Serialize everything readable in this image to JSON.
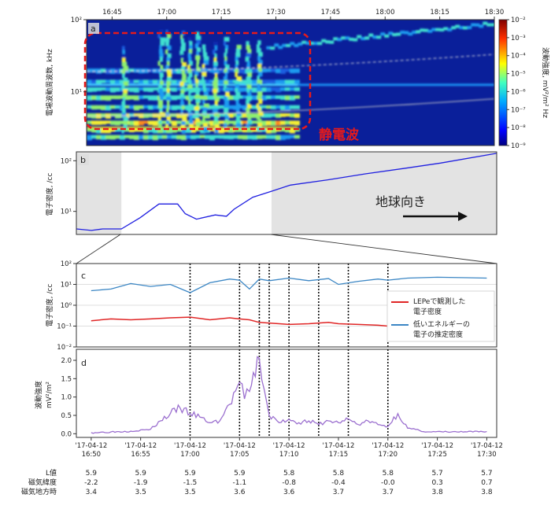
{
  "colors": {
    "blue_line": "#1f1fe0",
    "steel_blue": "#3b86c4",
    "red_line": "#e02525",
    "purple_line": "#9b6fcf",
    "shade": "#e3e3e3",
    "annotation_red": "#e41a1c"
  },
  "panel_a": {
    "label": "a",
    "ylabel": "電場波動周波数, kHz",
    "cbar_label": "波動強度, mV²/m² Hz",
    "top_ticks": [
      "16:45",
      "17:00",
      "17:15",
      "17:30",
      "17:45",
      "18:00",
      "18:15",
      "18:30"
    ],
    "y_ticks": [
      {
        "text": "10²",
        "value": 100
      },
      {
        "text": "10¹",
        "value": 10
      }
    ],
    "cbar_ticks": [
      "10⁻²",
      "10⁻³",
      "10⁻⁴",
      "10⁻⁵",
      "10⁻⁶",
      "10⁻⁷",
      "10⁻⁸",
      "10⁻⁹"
    ],
    "annotation": "静電波"
  },
  "panel_b": {
    "label": "b",
    "ylabel": "電子密度, /cc",
    "y_ticks": [
      {
        "text": "10²",
        "value": 100
      },
      {
        "text": "10¹",
        "value": 10
      }
    ],
    "annotation": "地球向き"
  },
  "panel_c": {
    "label": "c",
    "ylabel": "電子密度, /cc",
    "y_ticks": [
      {
        "text": "10²",
        "value": 100
      },
      {
        "text": "10¹",
        "value": 10
      },
      {
        "text": "10⁰",
        "value": 1
      },
      {
        "text": "10⁻¹",
        "value": 0.1
      },
      {
        "text": "10⁻²",
        "value": 0.01
      }
    ],
    "legend": [
      {
        "line1": "LEPeで観測した",
        "line2": "電子密度",
        "color": "#e02525"
      },
      {
        "line1": "低いエネルギーの",
        "line2": "電子の推定密度",
        "color": "#3b86c4"
      }
    ]
  },
  "panel_d": {
    "label": "d",
    "ylabel1": "波動強度",
    "ylabel2": "mV²/m²",
    "y_ticks": [
      {
        "text": "2.0",
        "value": 2.0
      },
      {
        "text": "1.5",
        "value": 1.5
      },
      {
        "text": "1.0",
        "value": 1.0
      },
      {
        "text": "0.5",
        "value": 0.5
      },
      {
        "text": "0.0",
        "value": 0.0
      }
    ]
  },
  "x_ticks": [
    {
      "date": "'17-04-12",
      "time": "16:50"
    },
    {
      "date": "'17-04-12",
      "time": "16:55"
    },
    {
      "date": "'17-04-12",
      "time": "17:00"
    },
    {
      "date": "'17-04-12",
      "time": "17:05"
    },
    {
      "date": "'17-04-12",
      "time": "17:10"
    },
    {
      "date": "'17-04-12",
      "time": "17:15"
    },
    {
      "date": "'17-04-12",
      "time": "17:20"
    },
    {
      "date": "'17-04-12",
      "time": "17:25"
    },
    {
      "date": "'17-04-12",
      "time": "17:30"
    }
  ],
  "footer": {
    "rows": [
      {
        "label": "L値",
        "values": [
          "5.9",
          "5.9",
          "5.9",
          "5.9",
          "5.8",
          "5.8",
          "5.8",
          "5.7",
          "5.7"
        ]
      },
      {
        "label": "磁気緯度",
        "values": [
          "-2.2",
          "-1.9",
          "-1.5",
          "-1.1",
          "-0.8",
          "-0.4",
          "-0.0",
          "0.3",
          "0.7"
        ]
      },
      {
        "label": "磁気地方時",
        "values": [
          "3.4",
          "3.5",
          "3.5",
          "3.6",
          "3.6",
          "3.7",
          "3.7",
          "3.8",
          "3.8"
        ]
      }
    ]
  },
  "chart_data": [
    {
      "panel": "a",
      "type": "heatmap",
      "xlim": [
        "16:38",
        "18:30"
      ],
      "ylim_khz": [
        1.8,
        100
      ],
      "yscale": "log",
      "colorscale_range": [
        "10⁻⁹",
        "10⁻²"
      ]
    },
    {
      "panel": "b",
      "type": "line",
      "yscale": "log",
      "ylim": [
        3.5,
        150
      ],
      "shaded_spans": [
        [
          "16:38",
          "16:50"
        ],
        [
          "17:30",
          "18:30"
        ]
      ],
      "x": [
        "16:38",
        "16:42",
        "16:45",
        "16:50",
        "16:55",
        "17:00",
        "17:05",
        "17:07",
        "17:10",
        "17:15",
        "17:18",
        "17:20",
        "17:25",
        "17:30",
        "17:35",
        "17:45",
        "17:55",
        "18:05",
        "18:15",
        "18:30"
      ],
      "values": [
        4.5,
        4.2,
        4.5,
        4.5,
        7.5,
        14,
        14,
        9,
        7,
        8.5,
        8,
        11,
        19,
        25,
        33,
        42,
        55,
        70,
        90,
        140
      ]
    },
    {
      "panel": "c",
      "type": "line",
      "yscale": "log",
      "ylim": [
        0.01,
        100
      ],
      "x": [
        "16:50",
        "16:52",
        "16:54",
        "16:56",
        "16:58",
        "17:00",
        "17:02",
        "17:04",
        "17:05",
        "17:06",
        "17:07",
        "17:08",
        "17:10",
        "17:12",
        "17:14",
        "17:15",
        "17:17",
        "17:19",
        "17:20",
        "17:22",
        "17:25",
        "17:28",
        "17:30"
      ],
      "series": [
        {
          "name": "LEPeで観測した電子密度",
          "values": [
            0.18,
            0.22,
            0.2,
            0.22,
            0.25,
            0.27,
            0.2,
            0.25,
            0.22,
            0.2,
            0.15,
            0.14,
            0.12,
            0.13,
            0.15,
            0.13,
            0.12,
            0.11,
            0.1,
            0.1,
            0.11,
            0.12,
            0.13
          ]
        },
        {
          "name": "低いエネルギーの電子の推定密度",
          "values": [
            5,
            6,
            11,
            8,
            10,
            4,
            12,
            18,
            16,
            6,
            18,
            15,
            20,
            15,
            19,
            10,
            14,
            18,
            16,
            20,
            22,
            21,
            20
          ]
        }
      ]
    },
    {
      "panel": "d",
      "type": "line",
      "ylim": [
        -0.1,
        2.3
      ],
      "x": [
        "16:50",
        "16:52",
        "16:54",
        "16:56",
        "16:57",
        "16:58",
        "16:59",
        "17:00",
        "17:01",
        "17:02",
        "17:03",
        "17:04",
        "17:05",
        "17:05:30",
        "17:06",
        "17:07",
        "17:07:30",
        "17:08",
        "17:09",
        "17:10",
        "17:11",
        "17:12",
        "17:13",
        "17:14",
        "17:15",
        "17:16",
        "17:17",
        "17:18",
        "17:19",
        "17:20",
        "17:21",
        "17:22",
        "17:24",
        "17:26",
        "17:28",
        "17:30"
      ],
      "values": [
        0.03,
        0.05,
        0.07,
        0.12,
        0.35,
        0.55,
        0.7,
        0.55,
        0.45,
        0.3,
        0.35,
        0.8,
        1.4,
        0.95,
        1.15,
        2.05,
        1.2,
        0.5,
        0.3,
        0.4,
        0.3,
        0.35,
        0.25,
        0.35,
        0.3,
        0.4,
        0.25,
        0.35,
        0.25,
        0.2,
        0.55,
        0.15,
        0.05,
        0.05,
        0.05,
        0.06
      ],
      "event_lines": [
        "17:00",
        "17:05",
        "17:07",
        "17:08",
        "17:10",
        "17:13",
        "17:16",
        "17:20"
      ]
    }
  ]
}
